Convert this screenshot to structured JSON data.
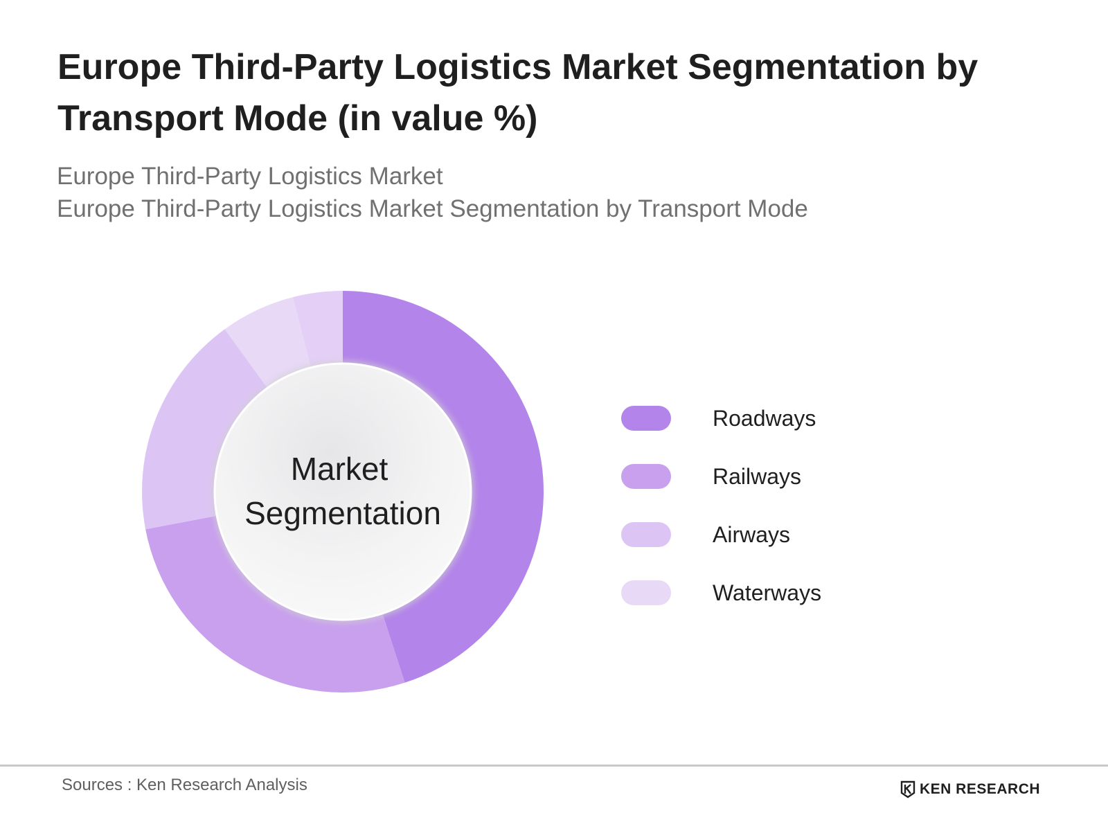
{
  "header": {
    "title": "Europe Third-Party Logistics Market Segmentation by Transport Mode (in value %)",
    "subtitle_line1": "Europe Third-Party Logistics Market",
    "subtitle_line2": "Europe Third-Party Logistics Market Segmentation by Transport Mode"
  },
  "chart_data": {
    "type": "pie",
    "variant": "donut",
    "center_label_line1": "Market",
    "center_label_line2": "Segmentation",
    "categories": [
      "Roadways",
      "Railways",
      "Airways",
      "Waterways"
    ],
    "values": [
      45,
      27,
      18,
      10
    ],
    "sub_slice_split": {
      "category": "Waterways",
      "values": [
        6,
        4
      ]
    },
    "unit": "%",
    "colors": [
      "#b384ea",
      "#c8a0ee",
      "#dcc4f4",
      "#e8d9f7"
    ],
    "waterways_alt_color": "#e4cff6",
    "legend_position": "right"
  },
  "footer": {
    "sources": "Sources : Ken Research Analysis",
    "brand": "KEN RESEARCH",
    "brand_icon": "ken-research-logo-icon"
  }
}
